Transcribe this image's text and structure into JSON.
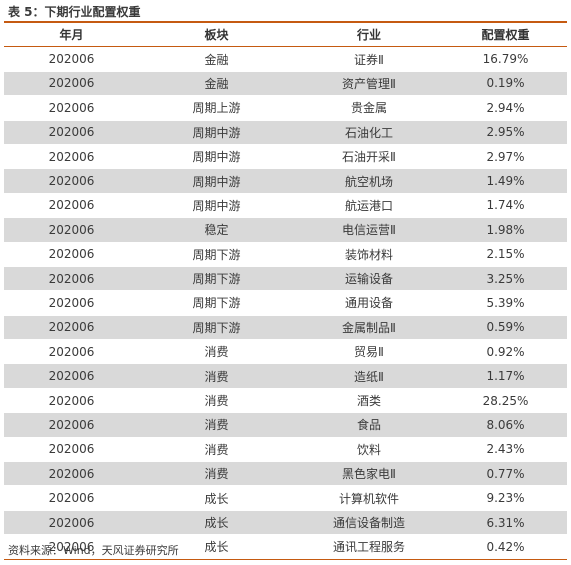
{
  "caption": "表 5：下期行业配置权重",
  "columns": [
    "年月",
    "板块",
    "行业",
    "配置权重"
  ],
  "rows": [
    {
      "ym": "202006",
      "sector": "金融",
      "industry": "证券Ⅱ",
      "weight": "16.79%"
    },
    {
      "ym": "202006",
      "sector": "金融",
      "industry": "资产管理Ⅱ",
      "weight": "0.19%"
    },
    {
      "ym": "202006",
      "sector": "周期上游",
      "industry": "贵金属",
      "weight": "2.94%"
    },
    {
      "ym": "202006",
      "sector": "周期中游",
      "industry": "石油化工",
      "weight": "2.95%"
    },
    {
      "ym": "202006",
      "sector": "周期中游",
      "industry": "石油开采Ⅱ",
      "weight": "2.97%"
    },
    {
      "ym": "202006",
      "sector": "周期中游",
      "industry": "航空机场",
      "weight": "1.49%"
    },
    {
      "ym": "202006",
      "sector": "周期中游",
      "industry": "航运港口",
      "weight": "1.74%"
    },
    {
      "ym": "202006",
      "sector": "稳定",
      "industry": "电信运营Ⅱ",
      "weight": "1.98%"
    },
    {
      "ym": "202006",
      "sector": "周期下游",
      "industry": "装饰材料",
      "weight": "2.15%"
    },
    {
      "ym": "202006",
      "sector": "周期下游",
      "industry": "运输设备",
      "weight": "3.25%"
    },
    {
      "ym": "202006",
      "sector": "周期下游",
      "industry": "通用设备",
      "weight": "5.39%"
    },
    {
      "ym": "202006",
      "sector": "周期下游",
      "industry": "金属制品Ⅱ",
      "weight": "0.59%"
    },
    {
      "ym": "202006",
      "sector": "消费",
      "industry": "贸易Ⅱ",
      "weight": "0.92%"
    },
    {
      "ym": "202006",
      "sector": "消费",
      "industry": "造纸Ⅱ",
      "weight": "1.17%"
    },
    {
      "ym": "202006",
      "sector": "消费",
      "industry": "酒类",
      "weight": "28.25%"
    },
    {
      "ym": "202006",
      "sector": "消费",
      "industry": "食品",
      "weight": "8.06%"
    },
    {
      "ym": "202006",
      "sector": "消费",
      "industry": "饮料",
      "weight": "2.43%"
    },
    {
      "ym": "202006",
      "sector": "消费",
      "industry": "黑色家电Ⅱ",
      "weight": "0.77%"
    },
    {
      "ym": "202006",
      "sector": "成长",
      "industry": "计算机软件",
      "weight": "9.23%"
    },
    {
      "ym": "202006",
      "sector": "成长",
      "industry": "通信设备制造",
      "weight": "6.31%"
    },
    {
      "ym": "202006",
      "sector": "成长",
      "industry": "通讯工程服务",
      "weight": "0.42%"
    }
  ],
  "source": "资料来源：Wind，天风证券研究所",
  "colors": {
    "accent": "#c55a11",
    "stripe": "#d9d9d9"
  }
}
